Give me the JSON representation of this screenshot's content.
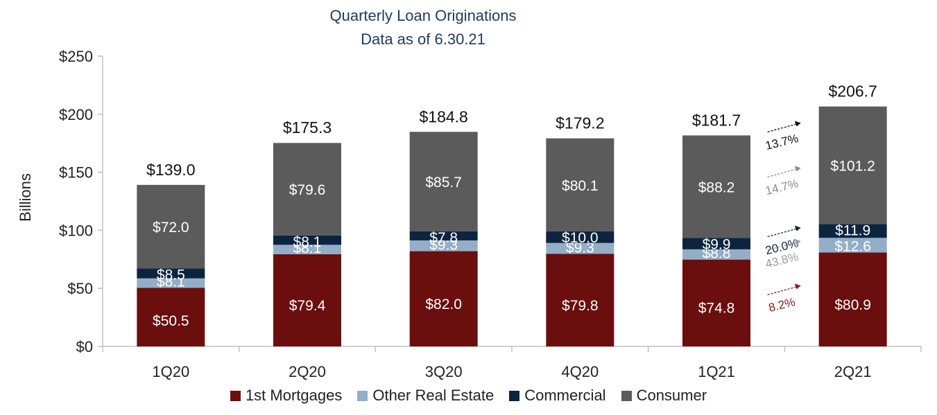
{
  "chart_data": {
    "type": "bar",
    "stacked": true,
    "title": "Quarterly Loan Originations",
    "subtitle": "Data as of 6.30.21",
    "ylabel": "Billions",
    "xlabel": "",
    "ylim": [
      0,
      250
    ],
    "yticks": [
      "$0",
      "$50",
      "$100",
      "$150",
      "$200",
      "$250"
    ],
    "ytick_values": [
      0,
      50,
      100,
      150,
      200,
      250
    ],
    "categories": [
      "1Q20",
      "2Q20",
      "3Q20",
      "4Q20",
      "1Q21",
      "2Q21"
    ],
    "series": [
      {
        "name": "1st Mortgages",
        "color": "#6b0e0e",
        "values": [
          50.5,
          79.4,
          82.0,
          79.8,
          74.8,
          80.9
        ],
        "labels": [
          "$50.5",
          "$79.4",
          "$82.0",
          "$79.8",
          "$74.8",
          "$80.9"
        ]
      },
      {
        "name": "Other Real Estate",
        "color": "#93aec6",
        "values": [
          8.1,
          8.1,
          9.3,
          9.3,
          8.8,
          12.6
        ],
        "labels": [
          "$8.1",
          "$8.1",
          "$9.3",
          "$9.3",
          "$8.8",
          "$12.6"
        ]
      },
      {
        "name": "Commercial",
        "color": "#0d2440",
        "values": [
          8.5,
          8.1,
          7.8,
          10.0,
          9.9,
          11.9
        ],
        "labels": [
          "$8.5",
          "$8.1",
          "$7.8",
          "$10.0",
          "$9.9",
          "$11.9"
        ]
      },
      {
        "name": "Consumer",
        "color": "#5b5b5b",
        "values": [
          72.0,
          79.6,
          85.7,
          80.1,
          88.2,
          101.2
        ],
        "labels": [
          "$72.0",
          "$79.6",
          "$85.7",
          "$80.1",
          "$88.2",
          "$101.2"
        ]
      }
    ],
    "totals": [
      139.0,
      175.3,
      184.8,
      179.2,
      181.7,
      206.7
    ],
    "total_labels": [
      "$139.0",
      "$175.3",
      "$184.8",
      "$179.2",
      "$181.7",
      "$206.7"
    ],
    "growth_annotations": [
      {
        "label": "13.7%",
        "series": "Total",
        "color": "#111111"
      },
      {
        "label": "14.7%",
        "series": "Consumer",
        "color": "#8a8a8a"
      },
      {
        "label": "20.0%",
        "series": "Commercial",
        "color": "#0d2440"
      },
      {
        "label": "43.8%",
        "series": "Other Real Estate",
        "color": "#9a9a9a"
      },
      {
        "label": "8.2%",
        "series": "1st Mortgages",
        "color": "#8b1a1a"
      }
    ],
    "legend_position": "bottom",
    "grid": false
  }
}
